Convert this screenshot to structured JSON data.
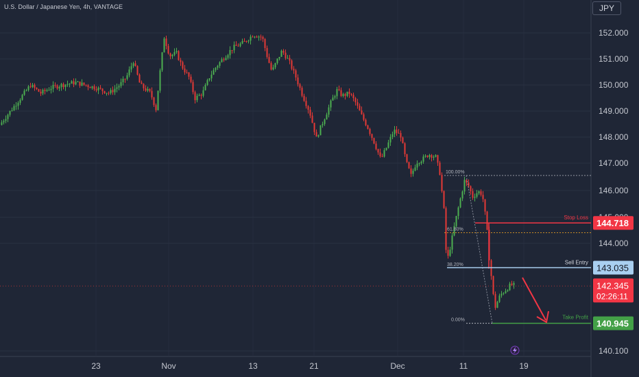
{
  "header": {
    "title": "U.S. Dollar / Japanese Yen, 4h, VANTAGE",
    "unit": "JPY"
  },
  "colors": {
    "bg": "#1f2636",
    "up": "#4caf50",
    "down": "#e53935",
    "grid": "#2a3142",
    "text": "#b2b5be",
    "stop": "#f23645",
    "entry": "#a9cff0",
    "target": "#43a047",
    "fib": "#b2b5be",
    "fib_618": "#f5a623"
  },
  "chart_data": {
    "type": "candlestick",
    "y_ticks": [
      "152.000",
      "151.000",
      "150.000",
      "149.000",
      "148.000",
      "147.000",
      "146.000",
      "145.000",
      "144.000",
      "140.100"
    ],
    "x_ticks": [
      "23",
      "Nov",
      "13",
      "21",
      "Dec",
      "11",
      "19"
    ],
    "ylim": [
      139.8,
      152.9
    ],
    "current_price": "142.345",
    "countdown": "02:26:11",
    "anchors": [
      [
        0,
        148.4
      ],
      [
        15,
        148.9
      ],
      [
        30,
        149.4
      ],
      [
        45,
        149.9
      ],
      [
        60,
        149.6
      ],
      [
        75,
        149.8
      ],
      [
        90,
        149.9
      ],
      [
        110,
        150.0
      ],
      [
        125,
        149.9
      ],
      [
        140,
        149.8
      ],
      [
        160,
        149.6
      ],
      [
        175,
        149.9
      ],
      [
        185,
        150.2
      ],
      [
        195,
        150.8
      ],
      [
        205,
        149.9
      ],
      [
        220,
        149.6
      ],
      [
        228,
        149.0
      ],
      [
        233,
        150.2
      ],
      [
        240,
        151.7
      ],
      [
        248,
        151.0
      ],
      [
        258,
        151.1
      ],
      [
        266,
        150.6
      ],
      [
        276,
        150.2
      ],
      [
        285,
        149.4
      ],
      [
        296,
        149.6
      ],
      [
        306,
        150.2
      ],
      [
        316,
        150.6
      ],
      [
        326,
        150.9
      ],
      [
        340,
        151.3
      ],
      [
        356,
        151.5
      ],
      [
        370,
        151.8
      ],
      [
        383,
        151.7
      ],
      [
        390,
        151.0
      ],
      [
        397,
        150.4
      ],
      [
        404,
        150.8
      ],
      [
        412,
        151.2
      ],
      [
        422,
        150.8
      ],
      [
        432,
        150.2
      ],
      [
        442,
        149.5
      ],
      [
        452,
        148.9
      ],
      [
        462,
        147.9
      ],
      [
        468,
        148.3
      ],
      [
        476,
        148.8
      ],
      [
        484,
        149.3
      ],
      [
        492,
        149.7
      ],
      [
        500,
        149.5
      ],
      [
        510,
        149.6
      ],
      [
        518,
        149.3
      ],
      [
        527,
        148.8
      ],
      [
        537,
        148.3
      ],
      [
        547,
        147.7
      ],
      [
        556,
        147.1
      ],
      [
        565,
        147.6
      ],
      [
        575,
        148.2
      ],
      [
        585,
        148.0
      ],
      [
        593,
        147.0
      ],
      [
        600,
        146.5
      ],
      [
        608,
        147.0
      ],
      [
        616,
        147.1
      ],
      [
        626,
        147.3
      ],
      [
        636,
        147.2
      ],
      [
        642,
        146.6
      ],
      [
        648,
        145.2
      ],
      [
        652,
        143.2
      ],
      [
        658,
        143.9
      ],
      [
        664,
        144.7
      ],
      [
        670,
        145.4
      ],
      [
        678,
        146.3
      ],
      [
        684,
        146.1
      ],
      [
        690,
        145.7
      ],
      [
        698,
        145.9
      ],
      [
        704,
        145.8
      ],
      [
        710,
        144.7
      ],
      [
        714,
        143.4
      ],
      [
        718,
        142.5
      ],
      [
        722,
        141.5
      ],
      [
        730,
        142.0
      ],
      [
        738,
        142.2
      ],
      [
        746,
        142.4
      ],
      [
        752,
        142.35
      ]
    ],
    "annotations": {
      "stop_loss": {
        "label": "Stop Loss",
        "price": 144.718,
        "price_label": "144.718"
      },
      "sell_entry": {
        "label": "Sell Entry",
        "price": 143.035,
        "price_label": "143.035"
      },
      "take_profit": {
        "label": "Take Profit",
        "price": 140.945,
        "price_label": "140.945"
      },
      "fib_levels": [
        {
          "label": "100.00%",
          "price": 146.5
        },
        {
          "label": "61.80%",
          "price": 144.35
        },
        {
          "label": "38.20%",
          "price": 143.02
        },
        {
          "label": "0.00%",
          "price": 140.945
        }
      ]
    }
  }
}
